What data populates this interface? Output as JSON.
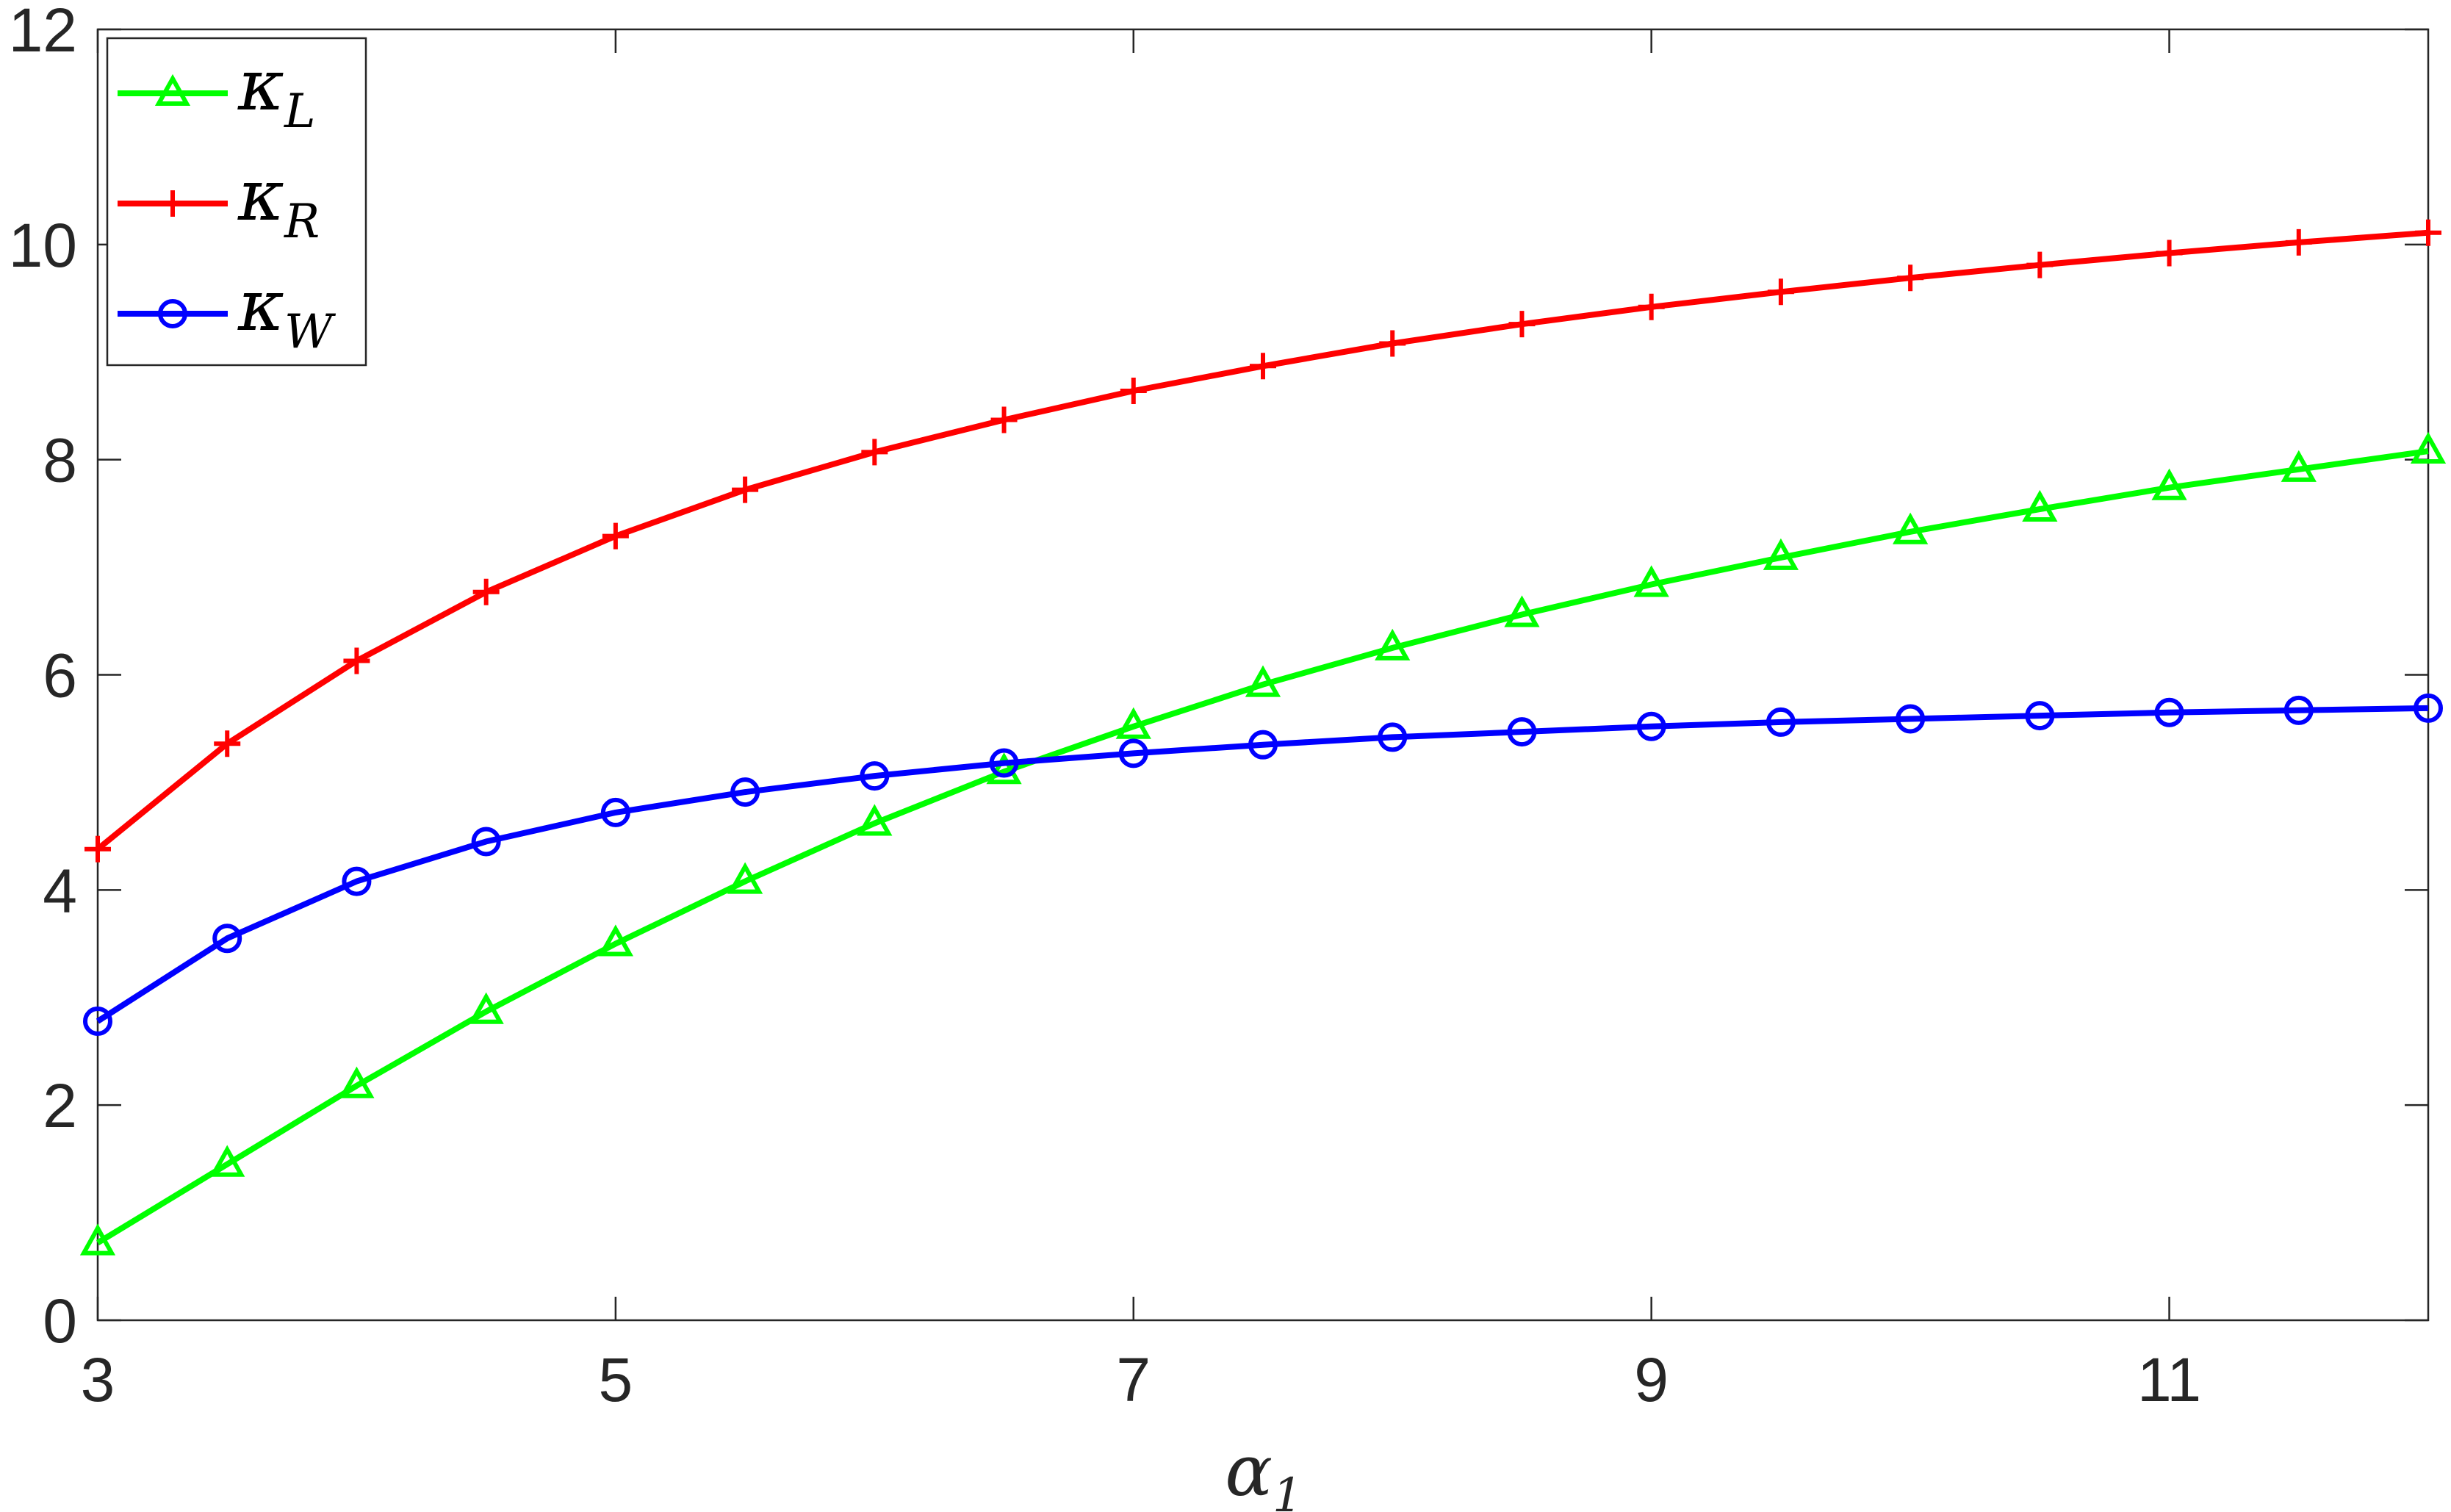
{
  "chart_data": {
    "type": "line",
    "xlabel": "α",
    "xlabel_sub": "1",
    "ylabel": "",
    "xlim": [
      3,
      12
    ],
    "ylim": [
      0,
      12
    ],
    "xticks": [
      3,
      5,
      7,
      9,
      11
    ],
    "yticks": [
      0,
      2,
      4,
      6,
      8,
      10,
      12
    ],
    "grid": false,
    "legend_position": "top-left",
    "x": [
      3,
      3.5,
      4,
      4.5,
      5,
      5.5,
      6,
      6.5,
      7,
      7.5,
      8,
      8.5,
      9,
      9.5,
      10,
      10.5,
      11,
      11.5,
      12
    ],
    "series": [
      {
        "name": "κ",
        "sub": "L",
        "color": "#00ff00",
        "marker": "triangle",
        "values": [
          0.72,
          1.45,
          2.18,
          2.87,
          3.5,
          4.08,
          4.62,
          5.1,
          5.52,
          5.91,
          6.25,
          6.56,
          6.84,
          7.09,
          7.33,
          7.54,
          7.74,
          7.91,
          8.08
        ]
      },
      {
        "name": "κ",
        "sub": "R",
        "color": "#ff0000",
        "marker": "plus",
        "values": [
          4.38,
          5.36,
          6.13,
          6.77,
          7.29,
          7.72,
          8.07,
          8.37,
          8.64,
          8.87,
          9.08,
          9.26,
          9.42,
          9.56,
          9.69,
          9.81,
          9.92,
          10.02,
          10.11
        ]
      },
      {
        "name": "κ",
        "sub": "W",
        "color": "#0000ff",
        "marker": "circle",
        "values": [
          2.78,
          3.55,
          4.08,
          4.45,
          4.72,
          4.91,
          5.06,
          5.18,
          5.27,
          5.35,
          5.42,
          5.47,
          5.52,
          5.56,
          5.59,
          5.62,
          5.65,
          5.67,
          5.69
        ]
      }
    ]
  }
}
